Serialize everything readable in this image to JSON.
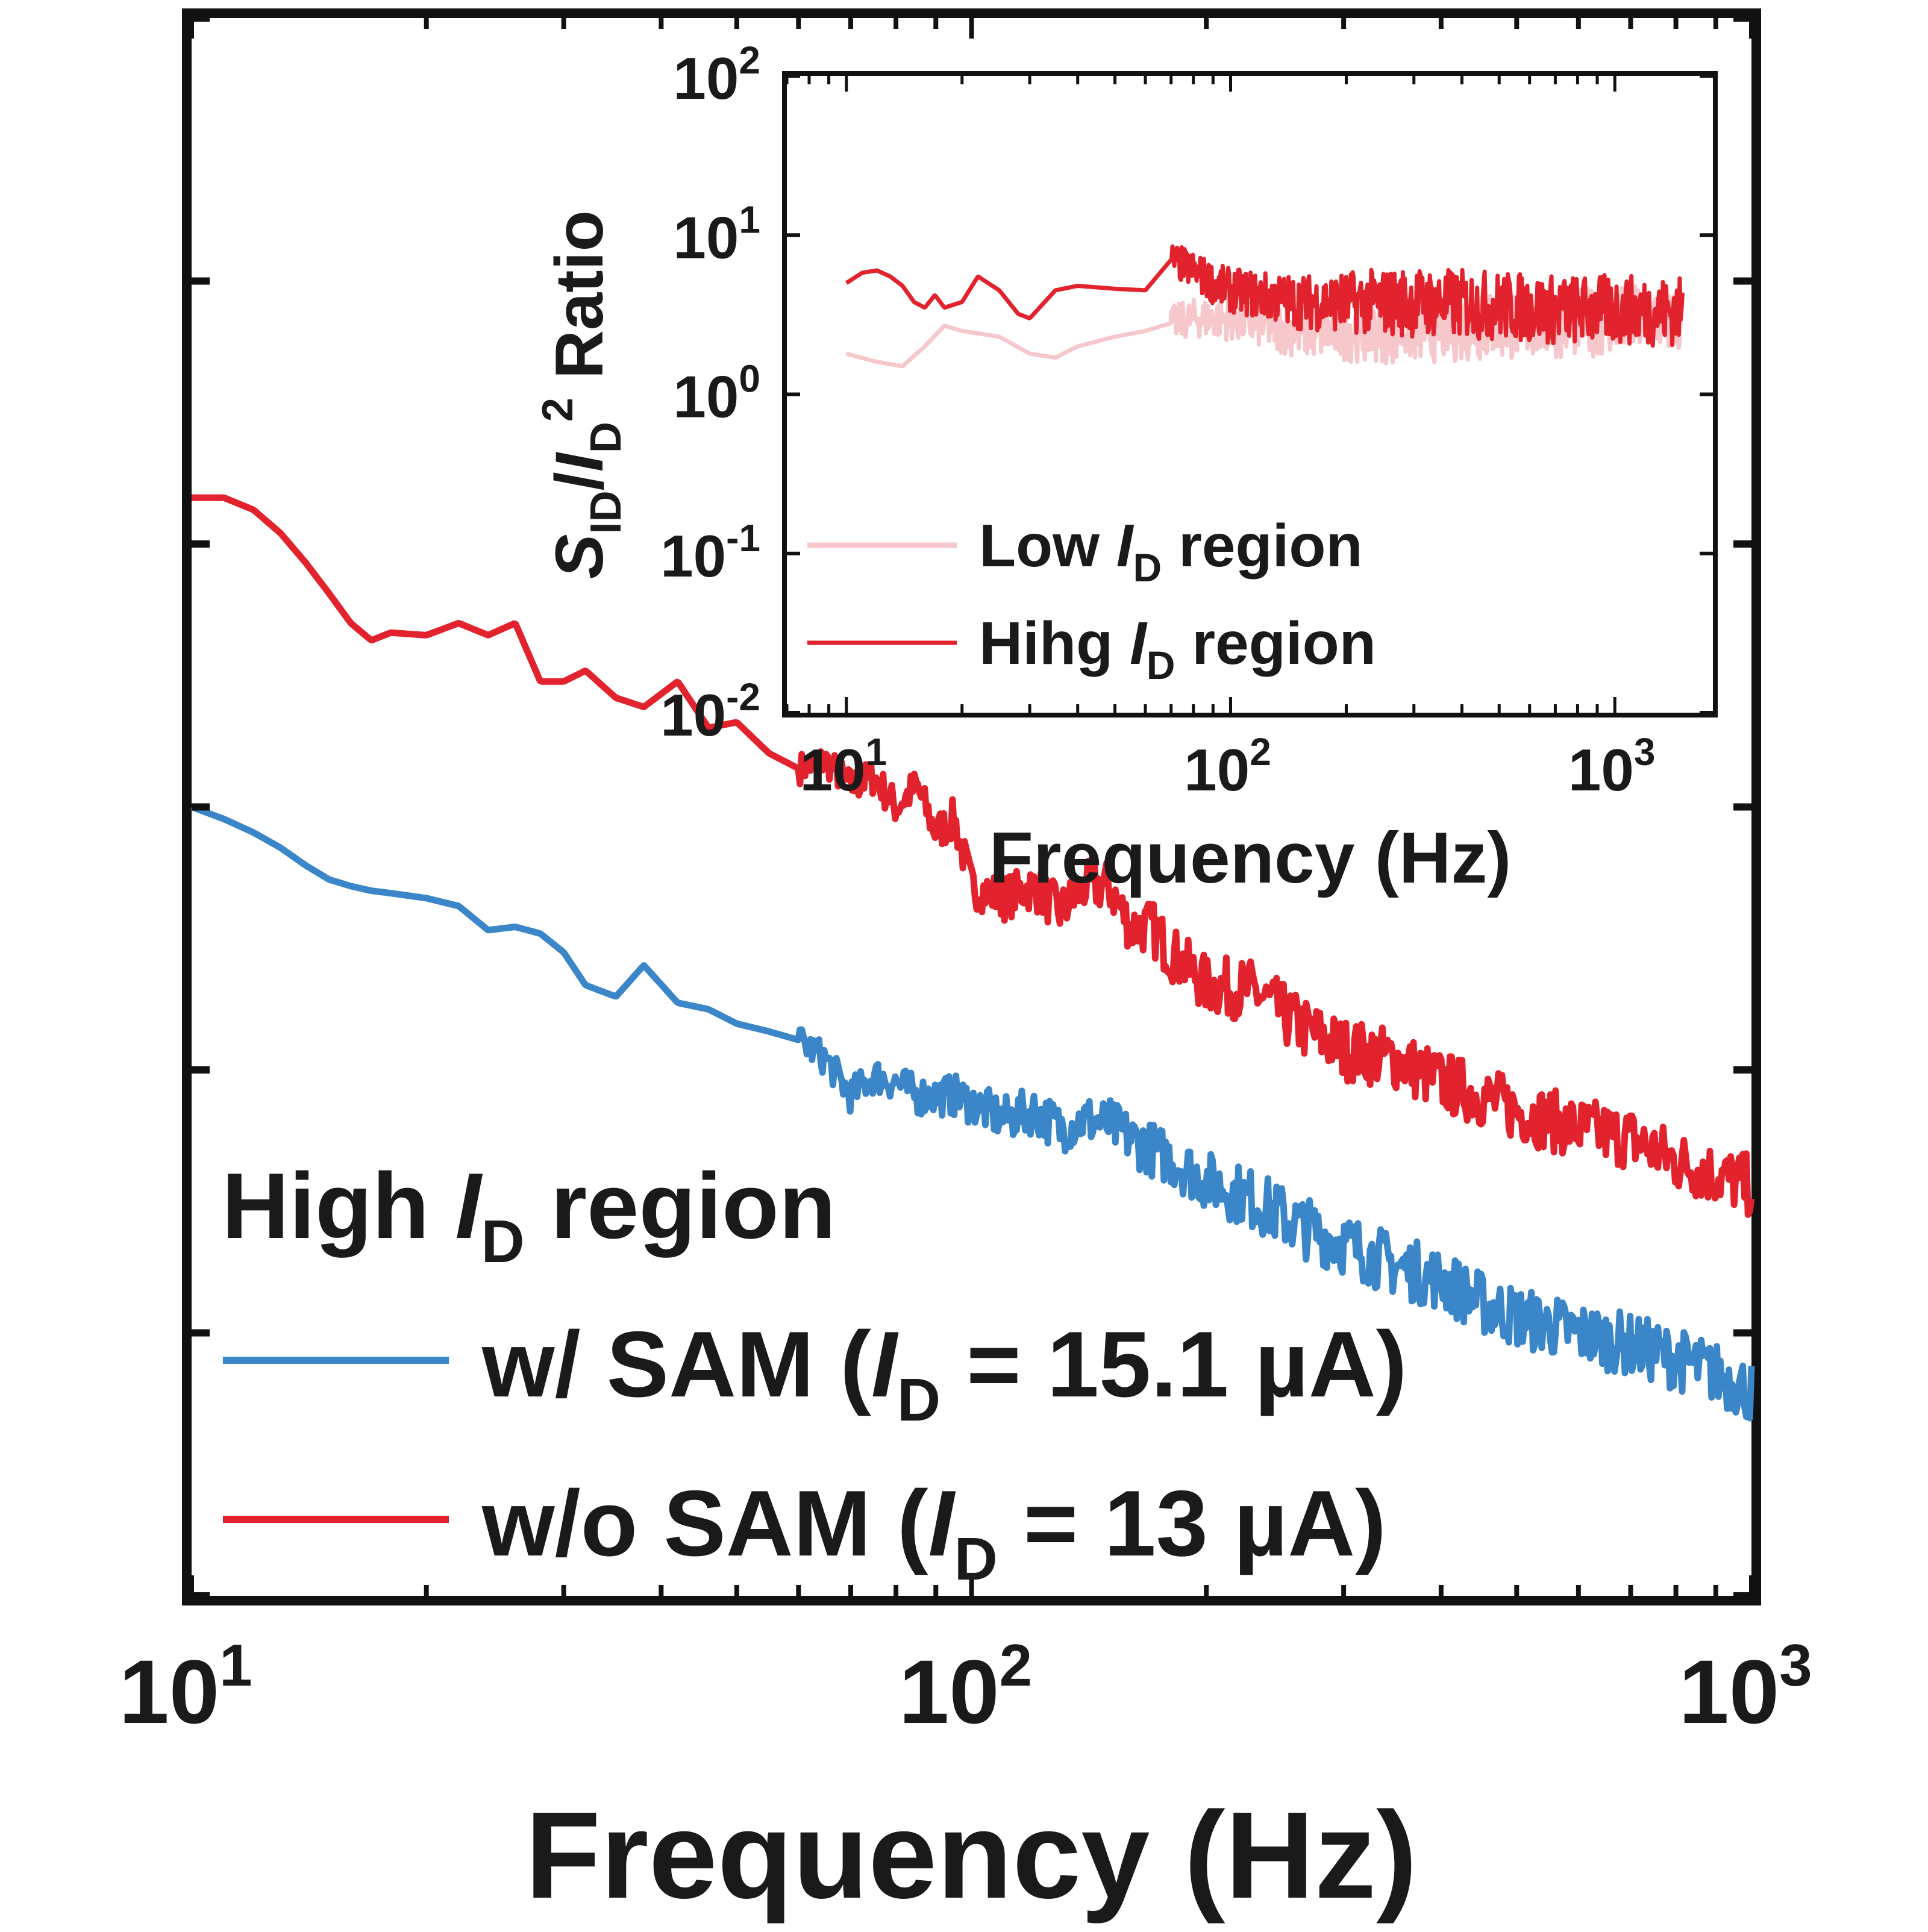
{
  "chart_data": [
    {
      "type": "line",
      "x_scale": "log",
      "xlim": [
        10,
        1000
      ],
      "x_ticks": [
        {
          "value": 10,
          "base": "10",
          "exp": "1"
        },
        {
          "value": 100,
          "base": "10",
          "exp": "2"
        },
        {
          "value": 1000,
          "base": "10",
          "exp": "3"
        }
      ],
      "xlabel": "Frequency (Hz)",
      "ylabel": "",
      "y_ticks_labeled": false,
      "y_scale": "log",
      "ylim": [
        1e-16,
        1e-10
      ],
      "legend": {
        "position": "bottom-left",
        "title": {
          "pre": "High ",
          "italic": "I",
          "sub": "D",
          "post": " region"
        },
        "entries": [
          {
            "pre": "w/ SAM (",
            "italic": "I",
            "sub": "D",
            "post": " = 15.1 µA)",
            "color": "#3a86c8"
          },
          {
            "pre": "w/o SAM (",
            "italic": "I",
            "sub": "D",
            "post": " =  13 µA)",
            "color": "#e2222c"
          }
        ]
      },
      "series": [
        {
          "name": "w/o SAM",
          "color": "#e2222c",
          "x": [
            10,
            11,
            12,
            13,
            14,
            15,
            16,
            17,
            18,
            20,
            22,
            24,
            26,
            28,
            30,
            32,
            35,
            38,
            42,
            46,
            50,
            55,
            60,
            65,
            70,
            75,
            80,
            85,
            90,
            95,
            100,
            110,
            120,
            130,
            140,
            150,
            160,
            170,
            180,
            200,
            230,
            260,
            300,
            350,
            400,
            450,
            500,
            600,
            700,
            800,
            900,
            1000
          ],
          "y": [
            1.5e-12,
            1.5e-12,
            1.35e-12,
            1.1e-12,
            8.5e-13,
            6.5e-13,
            5e-13,
            4.3e-13,
            4.6e-13,
            4.5e-13,
            5e-13,
            4.5e-13,
            5e-13,
            3e-13,
            3e-13,
            3.3e-13,
            2.6e-13,
            2.4e-13,
            3e-13,
            2e-13,
            2.1e-13,
            1.6e-13,
            1.4e-13,
            1.5e-13,
            1.2e-13,
            1.3e-13,
            1e-13,
            1.2e-13,
            8e-14,
            9e-14,
            5e-14,
            4.5e-14,
            5e-14,
            4e-14,
            5e-14,
            5e-14,
            3.5e-14,
            3.5e-14,
            2.8e-14,
            2.1e-14,
            2e-14,
            1.5e-14,
            1.2e-14,
            1.1e-14,
            9e-15,
            8e-15,
            7e-15,
            6e-15,
            5.5e-15,
            4.5e-15,
            4e-15,
            3.6e-15
          ],
          "noise_band_from_hz": 60
        },
        {
          "name": "w/ SAM",
          "color": "#3a86c8",
          "x": [
            10,
            11,
            12,
            13,
            14,
            15,
            16,
            17,
            18,
            20,
            22,
            24,
            26,
            28,
            30,
            32,
            35,
            38,
            42,
            46,
            50,
            55,
            60,
            65,
            70,
            75,
            80,
            85,
            90,
            95,
            100,
            110,
            120,
            130,
            140,
            150,
            160,
            170,
            180,
            200,
            230,
            260,
            300,
            350,
            400,
            450,
            500,
            600,
            700,
            800,
            900,
            1000
          ],
          "y": [
            1e-13,
            9e-14,
            8e-14,
            7e-14,
            6e-14,
            5.3e-14,
            5e-14,
            4.8e-14,
            4.7e-14,
            4.5e-14,
            4.2e-14,
            3.4e-14,
            3.5e-14,
            3.3e-14,
            2.8e-14,
            2.1e-14,
            1.9e-14,
            2.5e-14,
            1.8e-14,
            1.7e-14,
            1.5e-14,
            1.4e-14,
            1.3e-14,
            1.1e-14,
            8e-15,
            9.5e-15,
            9e-15,
            8e-15,
            8e-15,
            8e-15,
            7.5e-15,
            6.5e-15,
            7e-15,
            6e-15,
            6.5e-15,
            6.2e-15,
            5.5e-15,
            5e-15,
            4.6e-15,
            3.8e-15,
            3.2e-15,
            2.6e-15,
            2.2e-15,
            1.8e-15,
            1.6e-15,
            1.3e-15,
            1.15e-15,
            1e-15,
            9e-16,
            8e-16,
            7e-16,
            6e-16
          ],
          "noise_band_from_hz": 60
        }
      ]
    },
    {
      "type": "line",
      "inset": true,
      "x_scale": "log",
      "xlim": [
        7,
        1800
      ],
      "x_ticks": [
        {
          "value": 10,
          "base": "10",
          "exp": "1"
        },
        {
          "value": 100,
          "base": "10",
          "exp": "2"
        },
        {
          "value": 1000,
          "base": "10",
          "exp": "3"
        }
      ],
      "y_scale": "log",
      "ylim": [
        0.01,
        100
      ],
      "y_ticks": [
        {
          "value": 100,
          "base": "10",
          "exp": "2"
        },
        {
          "value": 10,
          "base": "10",
          "exp": "1"
        },
        {
          "value": 1,
          "base": "10",
          "exp": "0"
        },
        {
          "value": 0.1,
          "base": "10",
          "exp": "-1"
        },
        {
          "value": 0.01,
          "base": "10",
          "exp": "-2"
        }
      ],
      "xlabel": "Frequency (Hz)",
      "ylabel": {
        "S": "S",
        "S_sub": "ID",
        "slash": "/",
        "I": "I",
        "I_sub": "D",
        "sup": "2",
        "post": " Ratio"
      },
      "legend": {
        "position": "lower-left",
        "entries": [
          {
            "pre": "Low ",
            "italic": "I",
            "sub": "D",
            "post": " region",
            "color": "#f6c8cc"
          },
          {
            "pre": "Hihg ",
            "italic": "I",
            "sub": "D",
            "post": " region",
            "color": "#e2222c"
          }
        ]
      },
      "series": [
        {
          "name": "Low ID region",
          "color": "#f6c8cc",
          "x": [
            10,
            12,
            14,
            16,
            18,
            20,
            25,
            30,
            35,
            40,
            50,
            60,
            70,
            80,
            100,
            150,
            200,
            300,
            500,
            700,
            1000,
            1500
          ],
          "y": [
            1.8,
            1.6,
            1.5,
            2.0,
            2.7,
            2.5,
            2.3,
            1.8,
            1.7,
            2.0,
            2.3,
            2.5,
            2.8,
            3.0,
            3.0,
            2.5,
            2.5,
            2.6,
            2.7,
            2.8,
            2.9,
            3.0
          ],
          "noise_band_from_hz": 70
        },
        {
          "name": "Hihg ID region",
          "color": "#e2222c",
          "x": [
            10,
            11,
            12,
            13,
            14,
            15,
            16,
            17,
            18,
            20,
            22,
            25,
            28,
            30,
            35,
            40,
            50,
            60,
            70,
            80,
            90,
            100,
            150,
            200,
            300,
            500,
            700,
            1000,
            1500
          ],
          "y": [
            5.0,
            5.8,
            6.0,
            5.5,
            4.8,
            3.8,
            3.5,
            4.2,
            3.5,
            3.8,
            5.5,
            4.5,
            3.2,
            3.0,
            4.5,
            4.8,
            4.6,
            4.5,
            7.0,
            6.0,
            5.0,
            4.5,
            3.8,
            3.8,
            3.8,
            3.6,
            3.4,
            3.4,
            3.3
          ],
          "noise_band_from_hz": 70
        }
      ]
    }
  ]
}
